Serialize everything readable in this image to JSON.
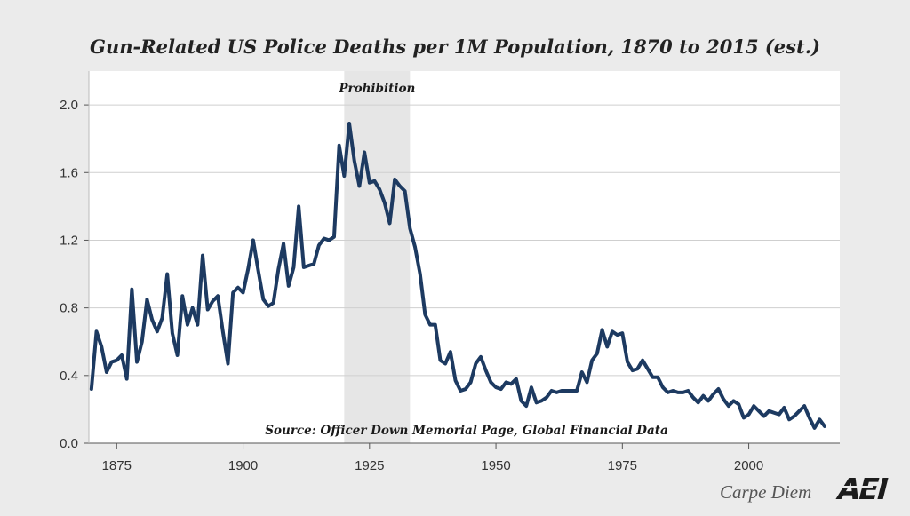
{
  "chart_data": {
    "type": "line",
    "title": "Gun-Related US Police Deaths per 1M Population, 1870 to 2015 (est.)",
    "xlabel": "",
    "ylabel": "",
    "xlim": [
      1869.5,
      2018
    ],
    "ylim": [
      0,
      2.2
    ],
    "x_ticks": [
      1875,
      1900,
      1925,
      1950,
      1975,
      2000
    ],
    "y_ticks": [
      0.0,
      0.4,
      0.8,
      1.2,
      1.6,
      2.0
    ],
    "y_tick_labels": [
      "0.0",
      "0.4",
      "0.8",
      "1.2",
      "1.6",
      "2.0"
    ],
    "grid": "horizontal",
    "series_color": "#1d3a61",
    "shaded_region": {
      "label": "Prohibition",
      "x": [
        1920,
        1933
      ],
      "color": "#e6e6e6"
    },
    "source": "Source: Officer Down Memorial Page, Global Financial Data",
    "series": [
      {
        "x": [
          1870,
          1871,
          1872,
          1873,
          1874,
          1875,
          1876,
          1877,
          1878,
          1879,
          1880,
          1881,
          1882,
          1883,
          1884,
          1885,
          1886,
          1887,
          1888,
          1889,
          1890,
          1891,
          1892,
          1893,
          1894,
          1895,
          1896,
          1897,
          1898,
          1899,
          1900,
          1901,
          1902,
          1903,
          1904,
          1905,
          1906,
          1907,
          1908,
          1909,
          1910,
          1911,
          1912,
          1913,
          1914,
          1915,
          1916,
          1917,
          1918,
          1919,
          1920,
          1921,
          1922,
          1923,
          1924,
          1925,
          1926,
          1927,
          1928,
          1929,
          1930,
          1931,
          1932,
          1933,
          1934,
          1935,
          1936,
          1937,
          1938,
          1939,
          1940,
          1941,
          1942,
          1943,
          1944,
          1945,
          1946,
          1947,
          1948,
          1949,
          1950,
          1951,
          1952,
          1953,
          1954,
          1955,
          1956,
          1957,
          1958,
          1959,
          1960,
          1961,
          1962,
          1963,
          1964,
          1965,
          1966,
          1967,
          1968,
          1969,
          1970,
          1971,
          1972,
          1973,
          1974,
          1975,
          1976,
          1977,
          1978,
          1979,
          1980,
          1981,
          1982,
          1983,
          1984,
          1985,
          1986,
          1987,
          1988,
          1989,
          1990,
          1991,
          1992,
          1993,
          1994,
          1995,
          1996,
          1997,
          1998,
          1999,
          2000,
          2001,
          2002,
          2003,
          2004,
          2005,
          2006,
          2007,
          2008,
          2009,
          2010,
          2011,
          2012,
          2013,
          2014,
          2015
        ],
        "values": [
          0.32,
          0.66,
          0.57,
          0.42,
          0.48,
          0.49,
          0.52,
          0.38,
          0.91,
          0.48,
          0.6,
          0.85,
          0.73,
          0.66,
          0.74,
          1.0,
          0.65,
          0.52,
          0.87,
          0.7,
          0.8,
          0.7,
          1.11,
          0.79,
          0.84,
          0.87,
          0.66,
          0.47,
          0.89,
          0.92,
          0.89,
          1.03,
          1.2,
          1.02,
          0.85,
          0.81,
          0.83,
          1.03,
          1.18,
          0.93,
          1.04,
          1.4,
          1.04,
          1.05,
          1.06,
          1.17,
          1.21,
          1.2,
          1.22,
          1.76,
          1.58,
          1.89,
          1.67,
          1.52,
          1.72,
          1.54,
          1.55,
          1.5,
          1.42,
          1.3,
          1.56,
          1.52,
          1.49,
          1.27,
          1.16,
          1.0,
          0.76,
          0.7,
          0.7,
          0.49,
          0.47,
          0.54,
          0.37,
          0.31,
          0.32,
          0.36,
          0.47,
          0.51,
          0.43,
          0.36,
          0.33,
          0.32,
          0.36,
          0.35,
          0.38,
          0.25,
          0.22,
          0.33,
          0.24,
          0.25,
          0.27,
          0.31,
          0.3,
          0.31,
          0.31,
          0.31,
          0.31,
          0.42,
          0.36,
          0.49,
          0.53,
          0.67,
          0.57,
          0.66,
          0.64,
          0.65,
          0.48,
          0.43,
          0.44,
          0.49,
          0.44,
          0.39,
          0.39,
          0.33,
          0.3,
          0.31,
          0.3,
          0.3,
          0.31,
          0.27,
          0.24,
          0.28,
          0.25,
          0.29,
          0.32,
          0.26,
          0.22,
          0.25,
          0.23,
          0.15,
          0.17,
          0.22,
          0.19,
          0.16,
          0.19,
          0.18,
          0.17,
          0.21,
          0.14,
          0.16,
          0.19,
          0.22,
          0.15,
          0.09,
          0.14,
          0.1
        ]
      }
    ]
  },
  "branding": {
    "blog_name": "Carpe Diem",
    "logo_text": "AEI"
  }
}
